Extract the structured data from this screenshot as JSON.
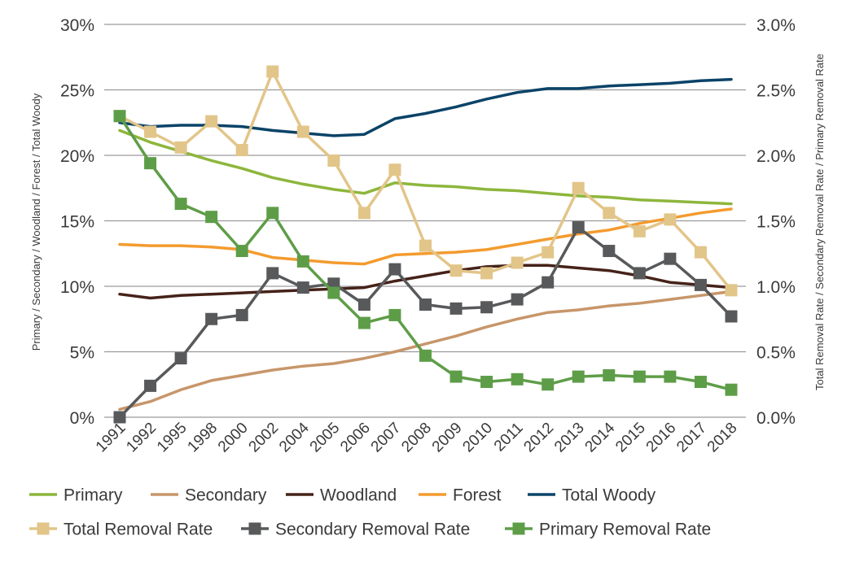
{
  "chart_data": {
    "type": "line",
    "categories": [
      "1991",
      "1992",
      "1995",
      "1998",
      "2000",
      "2002",
      "2004",
      "2005",
      "2006",
      "2007",
      "2008",
      "2009",
      "2010",
      "2011",
      "2012",
      "2013",
      "2014",
      "2015",
      "2016",
      "2017",
      "2018"
    ],
    "left_axis": {
      "label": "Primary / Secondary / Woodland / Forest / Total Woody",
      "ylim": [
        0,
        30
      ],
      "ticks": [
        0,
        5,
        10,
        15,
        20,
        25,
        30
      ],
      "tick_labels": [
        "0%",
        "5%",
        "10%",
        "15%",
        "20%",
        "25%",
        "30%"
      ]
    },
    "right_axis": {
      "label": "Total Removal Rate / Secondary Removal Rate / Primary Removal Rate",
      "ylim": [
        0,
        3.0
      ],
      "ticks": [
        0,
        0.5,
        1.0,
        1.5,
        2.0,
        2.5,
        3.0
      ],
      "tick_labels": [
        "0.0%",
        "0.5%",
        "1.0%",
        "1.5%",
        "2.0%",
        "2.5%",
        "3.0%"
      ]
    },
    "grid": "horizontal",
    "legend_position": "bottom",
    "series": [
      {
        "name": "Primary",
        "axis": "left",
        "color": "#8db63c",
        "marker": "none",
        "values": [
          21.9,
          21.0,
          20.3,
          19.6,
          19.0,
          18.3,
          17.8,
          17.4,
          17.1,
          17.9,
          17.7,
          17.6,
          17.4,
          17.3,
          17.1,
          16.9,
          16.8,
          16.6,
          16.5,
          16.4,
          16.3
        ]
      },
      {
        "name": "Secondary",
        "axis": "left",
        "color": "#c7966a",
        "marker": "none",
        "values": [
          0.6,
          1.2,
          2.1,
          2.8,
          3.2,
          3.6,
          3.9,
          4.1,
          4.5,
          5.0,
          5.6,
          6.2,
          6.9,
          7.5,
          8.0,
          8.2,
          8.5,
          8.7,
          9.0,
          9.3,
          9.6
        ]
      },
      {
        "name": "Woodland",
        "axis": "left",
        "color": "#452219",
        "marker": "none",
        "values": [
          9.4,
          9.1,
          9.3,
          9.4,
          9.5,
          9.6,
          9.7,
          9.8,
          9.9,
          10.4,
          10.8,
          11.2,
          11.5,
          11.6,
          11.6,
          11.4,
          11.2,
          10.8,
          10.3,
          10.1,
          9.9
        ]
      },
      {
        "name": "Forest",
        "axis": "left",
        "color": "#f39b2e",
        "marker": "none",
        "values": [
          13.2,
          13.1,
          13.1,
          13.0,
          12.8,
          12.2,
          12.0,
          11.8,
          11.7,
          12.4,
          12.5,
          12.6,
          12.8,
          13.2,
          13.6,
          14.0,
          14.3,
          14.8,
          15.2,
          15.6,
          15.9
        ]
      },
      {
        "name": "Total Woody",
        "axis": "left",
        "color": "#0b4368",
        "marker": "none",
        "values": [
          22.5,
          22.2,
          22.3,
          22.3,
          22.2,
          21.9,
          21.7,
          21.5,
          21.6,
          22.8,
          23.2,
          23.7,
          24.3,
          24.8,
          25.1,
          25.1,
          25.3,
          25.4,
          25.5,
          25.7,
          25.8
        ]
      },
      {
        "name": "Total Removal Rate",
        "axis": "right",
        "color": "#e2c589",
        "marker": "square",
        "values": [
          2.3,
          2.18,
          2.06,
          2.26,
          2.04,
          2.64,
          2.18,
          1.96,
          1.56,
          1.89,
          1.31,
          1.12,
          1.1,
          1.18,
          1.26,
          1.75,
          1.56,
          1.42,
          1.51,
          1.26,
          0.97
        ]
      },
      {
        "name": "Secondary Removal Rate",
        "axis": "right",
        "color": "#58595b",
        "marker": "square",
        "values": [
          0.0,
          0.24,
          0.45,
          0.75,
          0.78,
          1.1,
          0.99,
          1.02,
          0.86,
          1.13,
          0.86,
          0.83,
          0.84,
          0.9,
          1.03,
          1.45,
          1.27,
          1.1,
          1.21,
          1.01,
          0.77
        ]
      },
      {
        "name": "Primary Removal Rate",
        "axis": "right",
        "color": "#5e9d48",
        "marker": "square",
        "values": [
          2.3,
          1.94,
          1.63,
          1.53,
          1.27,
          1.56,
          1.19,
          0.95,
          0.72,
          0.78,
          0.47,
          0.31,
          0.27,
          0.29,
          0.25,
          0.31,
          0.32,
          0.31,
          0.31,
          0.27,
          0.21
        ]
      }
    ]
  }
}
